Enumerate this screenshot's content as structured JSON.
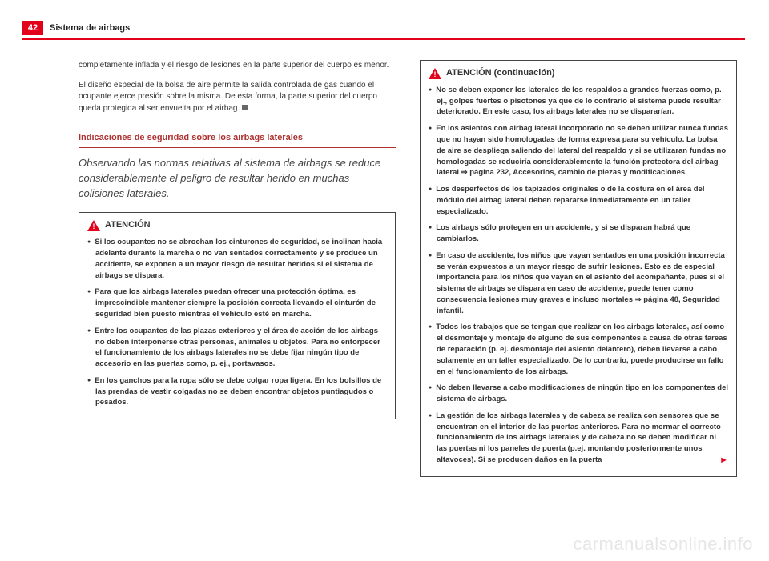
{
  "page_number": "42",
  "section": "Sistema de airbags",
  "colors": {
    "accent": "#e2001a",
    "text": "#333333",
    "subhead": "#b03030"
  },
  "col1": {
    "p1": "completamente inflada y el riesgo de lesiones en la parte superior del cuerpo es menor.",
    "p2": "El diseño especial de la bolsa de aire permite la salida controlada de gas cuando el ocupante ejerce presión sobre la misma. De esta forma, la parte superior del cuerpo queda protegida al ser envuelta por el airbag.",
    "subhead": "Indicaciones de seguridad sobre los airbags laterales",
    "lead": "Observando las normas relativas al sistema de airbags se reduce considerablemente el peligro de resultar herido en muchas colisiones laterales.",
    "notice_title": "ATENCIÓN",
    "bullets": [
      "Si los ocupantes no se abrochan los cinturones de seguridad, se inclinan hacia adelante durante la marcha o no van sentados correctamente y se produce un accidente, se exponen a un mayor riesgo de resultar heridos si el sistema de airbags se dispara.",
      "Para que los airbags laterales puedan ofrecer una protección óptima, es imprescindible mantener siempre la posición correcta llevando el cinturón de seguridad bien puesto mientras el vehículo esté en marcha.",
      "Entre los ocupantes de las plazas exteriores y el área de acción de los airbags no deben interponerse otras personas, animales u objetos. Para no entorpecer el funcionamiento de los airbags laterales no se debe fijar ningún tipo de accesorio en las puertas como, p. ej., portavasos.",
      "En los ganchos para la ropa sólo se debe colgar ropa ligera. En los bolsillos de las prendas de vestir colgadas no se deben encontrar objetos puntiagudos o pesados."
    ]
  },
  "col2": {
    "notice_title": "ATENCIÓN (continuación)",
    "bullets": [
      "No se deben exponer los laterales de los respaldos a grandes fuerzas como, p. ej., golpes fuertes o pisotones ya que de lo contrario el sistema puede resultar deteriorado. En este caso, los airbags laterales no se dispararían.",
      "En los asientos con airbag lateral incorporado no se deben utilizar nunca fundas que no hayan sido homologadas de forma expresa para su vehículo. La bolsa de aire se despliega saliendo del lateral del respaldo y si se utilizaran fundas no homologadas se reduciría considerablemente la función protectora del airbag lateral ⇒ página 232, Accesorios, cambio de piezas y modificaciones.",
      "Los desperfectos de los tapizados originales o de la costura en el área del módulo del airbag lateral deben repararse inmediatamente en un taller especializado.",
      "Los airbags sólo protegen en un accidente, y si se disparan habrá que cambiarlos.",
      "En caso de accidente, los niños que vayan sentados en una posición incorrecta se verán expuestos a un mayor riesgo de sufrir lesiones. Esto es de especial importancia para los niños que vayan en el asiento del acompañante, pues si el sistema de airbags se dispara en caso de accidente, puede tener como consecuencia lesiones muy graves e incluso mortales ⇒ página 48, Seguridad infantil.",
      "Todos los trabajos que se tengan que realizar en los airbags laterales, así como el desmontaje y montaje de alguno de sus componentes a causa de otras tareas de reparación (p. ej. desmontaje del asiento delantero), deben llevarse a cabo solamente en un taller especializado. De lo contrario, puede producirse un fallo en el funcionamiento de los airbags.",
      "No deben llevarse a cabo modificaciones de ningún tipo en los componentes del sistema de airbags.",
      "La gestión de los airbags laterales y de cabeza se realiza con sensores que se encuentran en el interior de las puertas anteriores. Para no mermar el correcto funcionamiento de los airbags laterales y de cabeza no se deben modificar ni las puertas ni los paneles de puerta (p.ej. montando posteriormente unos altavoces). Si se producen daños en la puerta"
    ]
  },
  "watermark": "carmanualsonline.info"
}
